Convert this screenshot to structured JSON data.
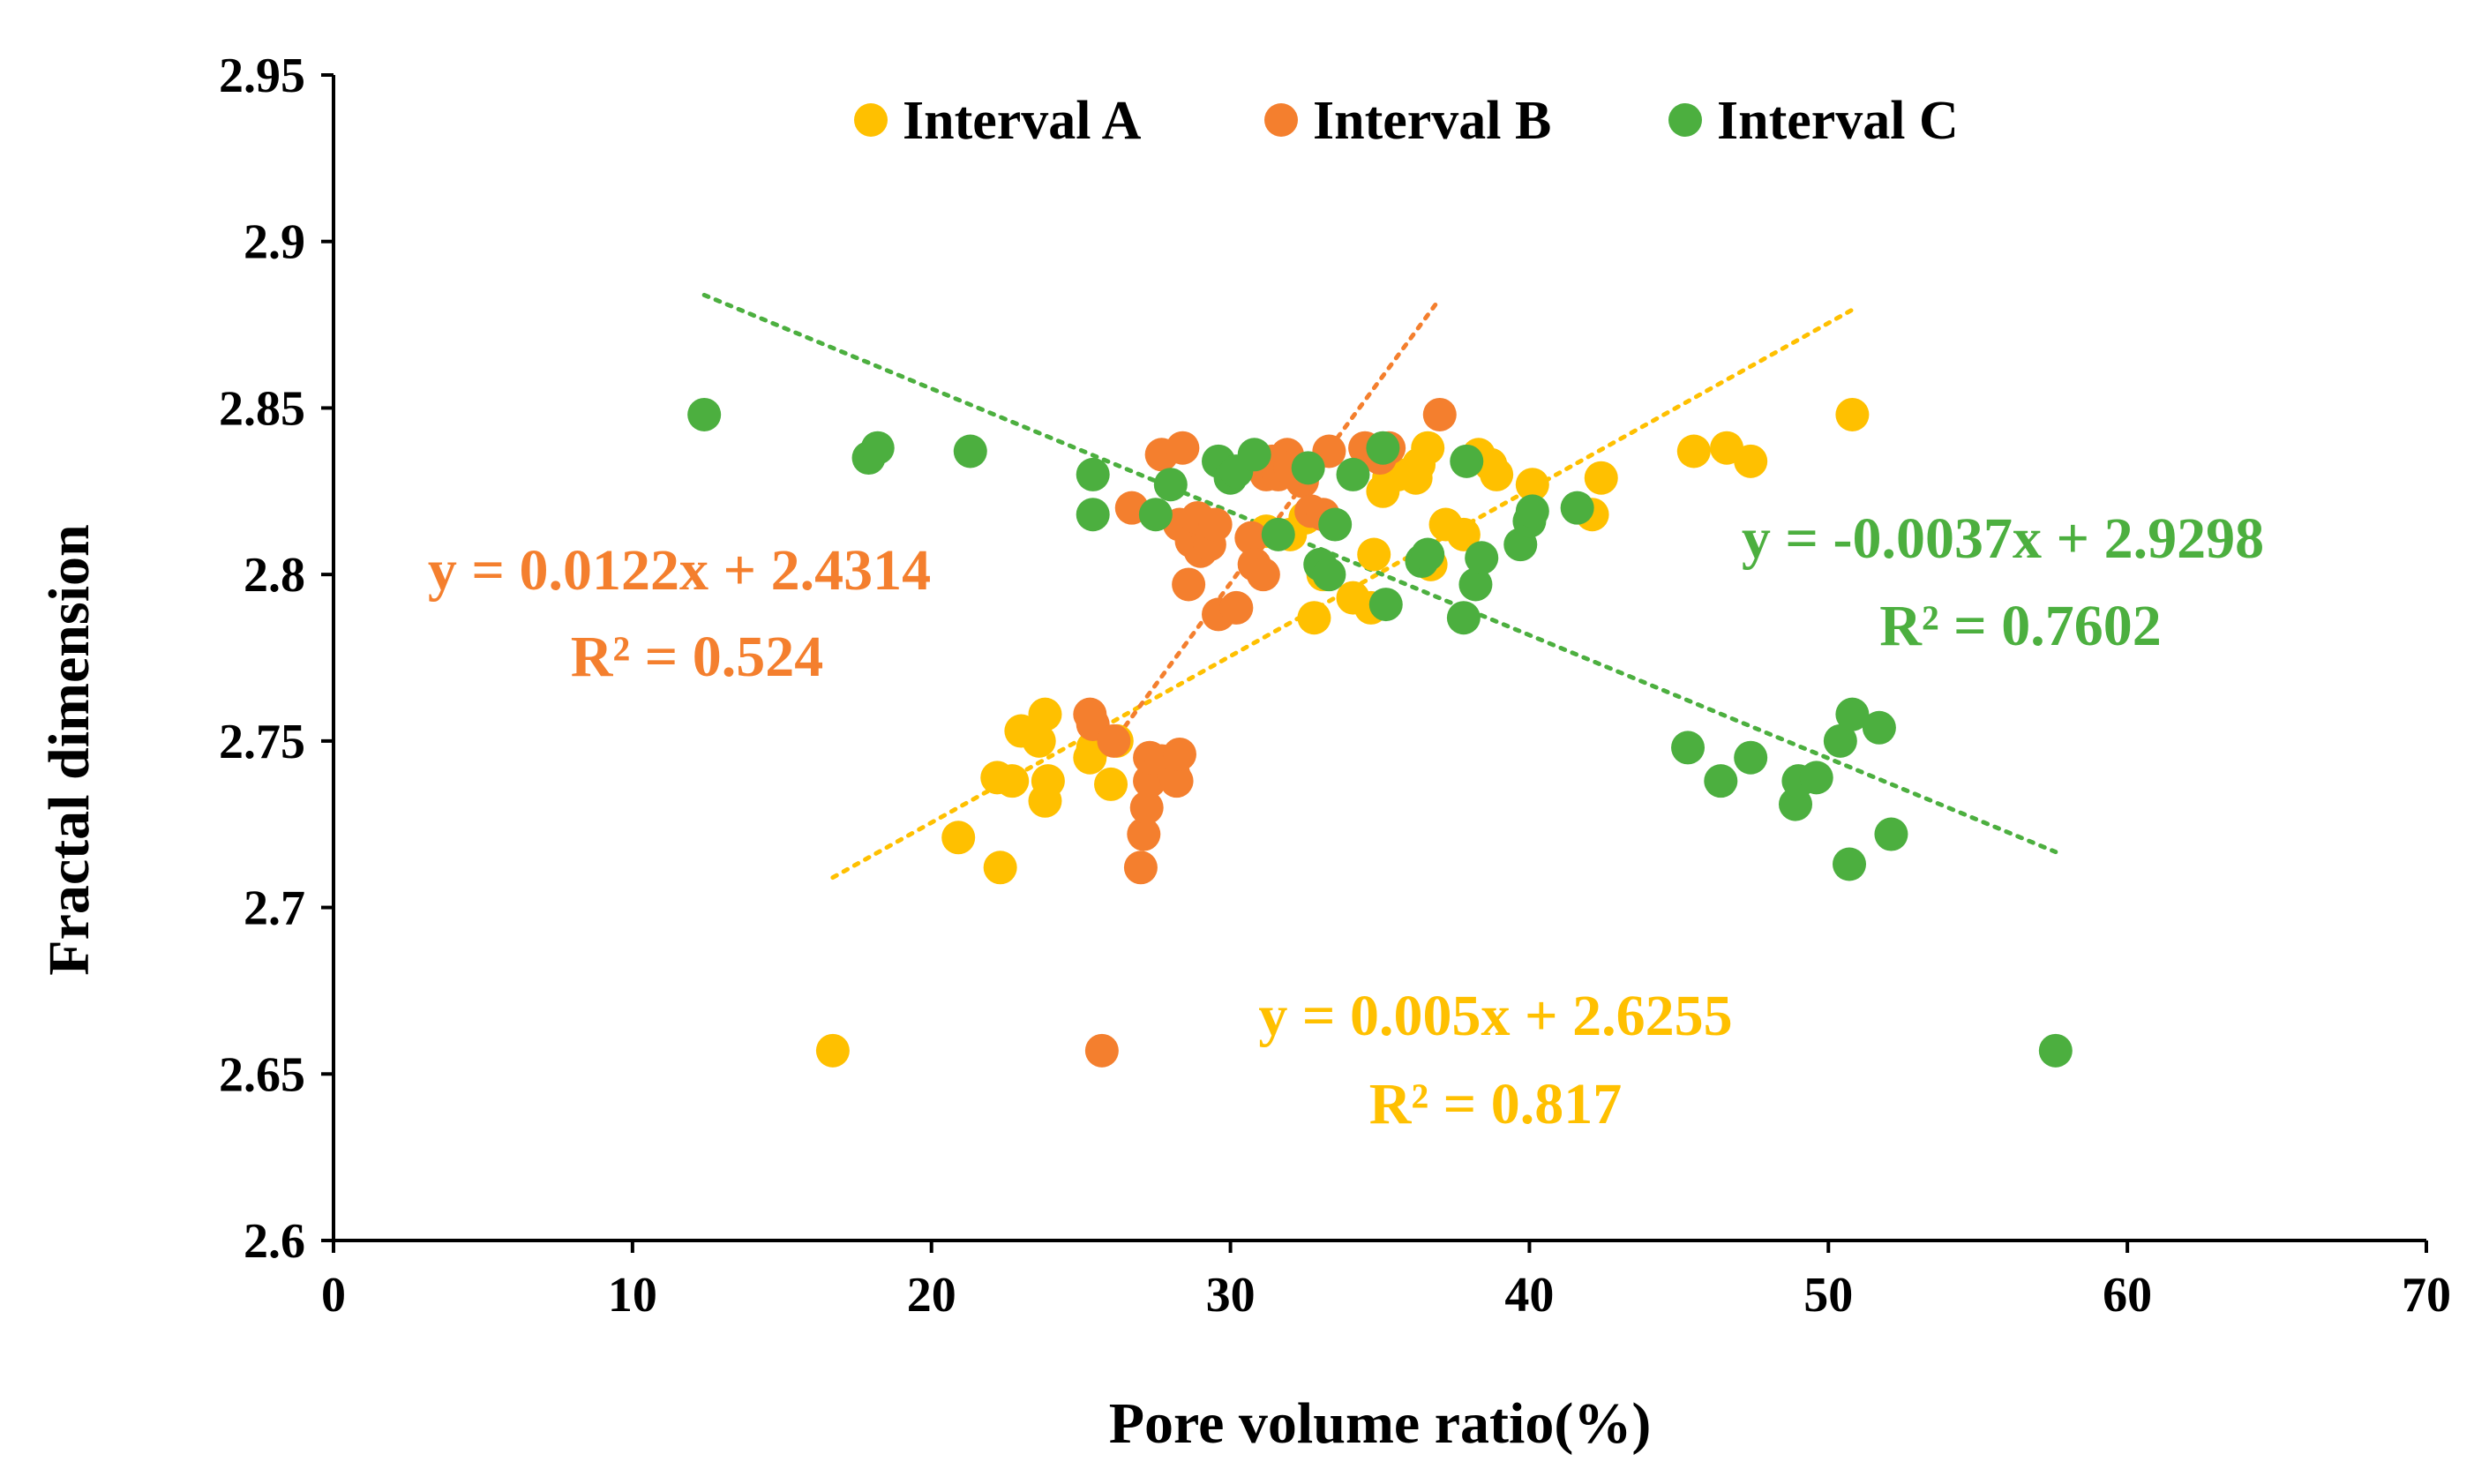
{
  "chart_data": {
    "type": "scatter",
    "title": "",
    "xlabel": "Pore volume ratio(%)",
    "ylabel": "Fractal dimension",
    "xlim": [
      0,
      70
    ],
    "ylim": [
      2.6,
      2.95
    ],
    "xticks": [
      0,
      10,
      20,
      30,
      40,
      50,
      60,
      70
    ],
    "yticks": [
      2.6,
      2.65,
      2.7,
      2.75,
      2.8,
      2.85,
      2.9,
      2.95
    ],
    "xtick_labels": [
      "0",
      "10",
      "20",
      "30",
      "40",
      "50",
      "60",
      "70"
    ],
    "ytick_labels": [
      "2.6",
      "2.65",
      "2.7",
      "2.75",
      "2.8",
      "2.85",
      "2.9",
      "2.95"
    ],
    "grid": false,
    "legend_position": "top-center",
    "series": [
      {
        "name": "Interval A",
        "color": "#FFC000",
        "points": [
          [
            16.7,
            2.657
          ],
          [
            20.9,
            2.721
          ],
          [
            22.3,
            2.712
          ],
          [
            22.2,
            2.739
          ],
          [
            22.7,
            2.738
          ],
          [
            23.0,
            2.753
          ],
          [
            23.6,
            2.75
          ],
          [
            23.8,
            2.758
          ],
          [
            23.8,
            2.732
          ],
          [
            23.9,
            2.738
          ],
          [
            25.3,
            2.745
          ],
          [
            25.4,
            2.748
          ],
          [
            26.0,
            2.737
          ],
          [
            26.2,
            2.75
          ],
          [
            31.2,
            2.813
          ],
          [
            32.0,
            2.812
          ],
          [
            32.5,
            2.817
          ],
          [
            32.8,
            2.787
          ],
          [
            33.1,
            2.8
          ],
          [
            34.1,
            2.793
          ],
          [
            34.7,
            2.79
          ],
          [
            34.8,
            2.806
          ],
          [
            35.1,
            2.825
          ],
          [
            35.3,
            2.829
          ],
          [
            35.6,
            2.83
          ],
          [
            36.2,
            2.829
          ],
          [
            36.3,
            2.833
          ],
          [
            36.6,
            2.838
          ],
          [
            36.7,
            2.803
          ],
          [
            37.2,
            2.815
          ],
          [
            37.8,
            2.812
          ],
          [
            38.3,
            2.836
          ],
          [
            38.7,
            2.833
          ],
          [
            38.9,
            2.83
          ],
          [
            40.1,
            2.827
          ],
          [
            42.1,
            2.818
          ],
          [
            42.4,
            2.829
          ],
          [
            45.5,
            2.837
          ],
          [
            46.6,
            2.838
          ],
          [
            47.4,
            2.834
          ],
          [
            50.8,
            2.848
          ]
        ],
        "trendline": {
          "slope": 0.005,
          "intercept": 2.6255,
          "x_range": [
            16.7,
            50.8
          ],
          "equation": "y = 0.005x + 2.6255",
          "r2": "R² = 0.817"
        }
      },
      {
        "name": "Interval B",
        "color": "#F47F2E",
        "points": [
          [
            25.7,
            2.657
          ],
          [
            25.3,
            2.758
          ],
          [
            25.4,
            2.755
          ],
          [
            26.1,
            2.75
          ],
          [
            26.7,
            2.82
          ],
          [
            27.0,
            2.712
          ],
          [
            27.1,
            2.722
          ],
          [
            27.2,
            2.73
          ],
          [
            27.3,
            2.738
          ],
          [
            27.3,
            2.745
          ],
          [
            27.7,
            2.744
          ],
          [
            27.7,
            2.836
          ],
          [
            28.1,
            2.74
          ],
          [
            28.2,
            2.738
          ],
          [
            28.3,
            2.746
          ],
          [
            28.3,
            2.815
          ],
          [
            28.4,
            2.838
          ],
          [
            28.6,
            2.797
          ],
          [
            28.7,
            2.81
          ],
          [
            28.9,
            2.817
          ],
          [
            29.0,
            2.807
          ],
          [
            29.3,
            2.809
          ],
          [
            29.5,
            2.815
          ],
          [
            29.6,
            2.788
          ],
          [
            30.2,
            2.79
          ],
          [
            30.7,
            2.811
          ],
          [
            30.8,
            2.803
          ],
          [
            31.1,
            2.8
          ],
          [
            31.2,
            2.83
          ],
          [
            31.4,
            2.834
          ],
          [
            31.6,
            2.83
          ],
          [
            31.9,
            2.836
          ],
          [
            32.0,
            2.832
          ],
          [
            32.4,
            2.828
          ],
          [
            32.7,
            2.819
          ],
          [
            33.1,
            2.818
          ],
          [
            33.3,
            2.837
          ],
          [
            34.5,
            2.838
          ],
          [
            35.0,
            2.835
          ],
          [
            35.3,
            2.838
          ],
          [
            37.0,
            2.848
          ]
        ],
        "trendline": {
          "slope": 0.0122,
          "intercept": 2.4314,
          "x_range": [
            25.5,
            36.9
          ],
          "equation": "y = 0.0122x + 2.4314",
          "r2": "R² = 0.524"
        }
      },
      {
        "name": "Interval C",
        "color": "#4CAF3F",
        "points": [
          [
            12.4,
            2.848
          ],
          [
            17.9,
            2.835
          ],
          [
            18.2,
            2.838
          ],
          [
            21.3,
            2.837
          ],
          [
            25.4,
            2.83
          ],
          [
            25.4,
            2.818
          ],
          [
            27.5,
            2.818
          ],
          [
            28.0,
            2.827
          ],
          [
            29.6,
            2.834
          ],
          [
            30.0,
            2.829
          ],
          [
            30.2,
            2.831
          ],
          [
            30.8,
            2.836
          ],
          [
            31.6,
            2.812
          ],
          [
            32.6,
            2.832
          ],
          [
            33.0,
            2.803
          ],
          [
            33.3,
            2.8
          ],
          [
            33.5,
            2.815
          ],
          [
            34.1,
            2.83
          ],
          [
            35.1,
            2.838
          ],
          [
            35.2,
            2.791
          ],
          [
            36.4,
            2.804
          ],
          [
            36.6,
            2.806
          ],
          [
            37.8,
            2.787
          ],
          [
            37.9,
            2.834
          ],
          [
            38.2,
            2.797
          ],
          [
            38.4,
            2.805
          ],
          [
            39.7,
            2.809
          ],
          [
            40.0,
            2.816
          ],
          [
            40.1,
            2.819
          ],
          [
            41.6,
            2.82
          ],
          [
            45.3,
            2.748
          ],
          [
            46.4,
            2.738
          ],
          [
            47.4,
            2.745
          ],
          [
            48.9,
            2.731
          ],
          [
            49.0,
            2.738
          ],
          [
            49.6,
            2.739
          ],
          [
            50.4,
            2.75
          ],
          [
            50.7,
            2.713
          ],
          [
            50.8,
            2.758
          ],
          [
            51.7,
            2.754
          ],
          [
            52.1,
            2.722
          ],
          [
            57.6,
            2.657
          ]
        ],
        "trendline": {
          "slope": -0.0037,
          "intercept": 2.9298,
          "x_range": [
            12.4,
            57.6
          ],
          "equation": "y = -0.0037x + 2.9298",
          "r2": "R² = 0.7602"
        }
      }
    ]
  }
}
